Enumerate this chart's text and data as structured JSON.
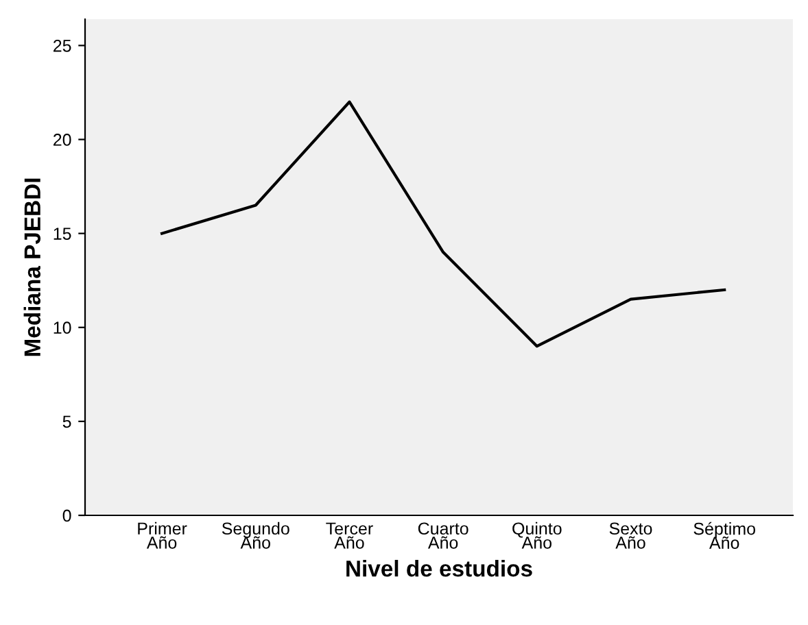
{
  "chart_data": {
    "type": "line",
    "xlabel": "Nivel de estudios",
    "ylabel": "Mediana PJEBDI",
    "categories": [
      "Primer\nAño",
      "Segundo\nAño",
      "Tercer\nAño",
      "Cuarto\nAño",
      "Quinto\nAño",
      "Sexto\nAño",
      "Séptimo\nAño"
    ],
    "series": [
      {
        "color": "#000000",
        "values": [
          15,
          16.5,
          22,
          14,
          9,
          11.5,
          12
        ]
      }
    ],
    "ylim": [
      0,
      26.4
    ],
    "yticks": [
      0,
      5,
      10,
      15,
      20,
      25
    ],
    "grid": false,
    "legend": false,
    "marker": "none",
    "line_style": "solid"
  }
}
